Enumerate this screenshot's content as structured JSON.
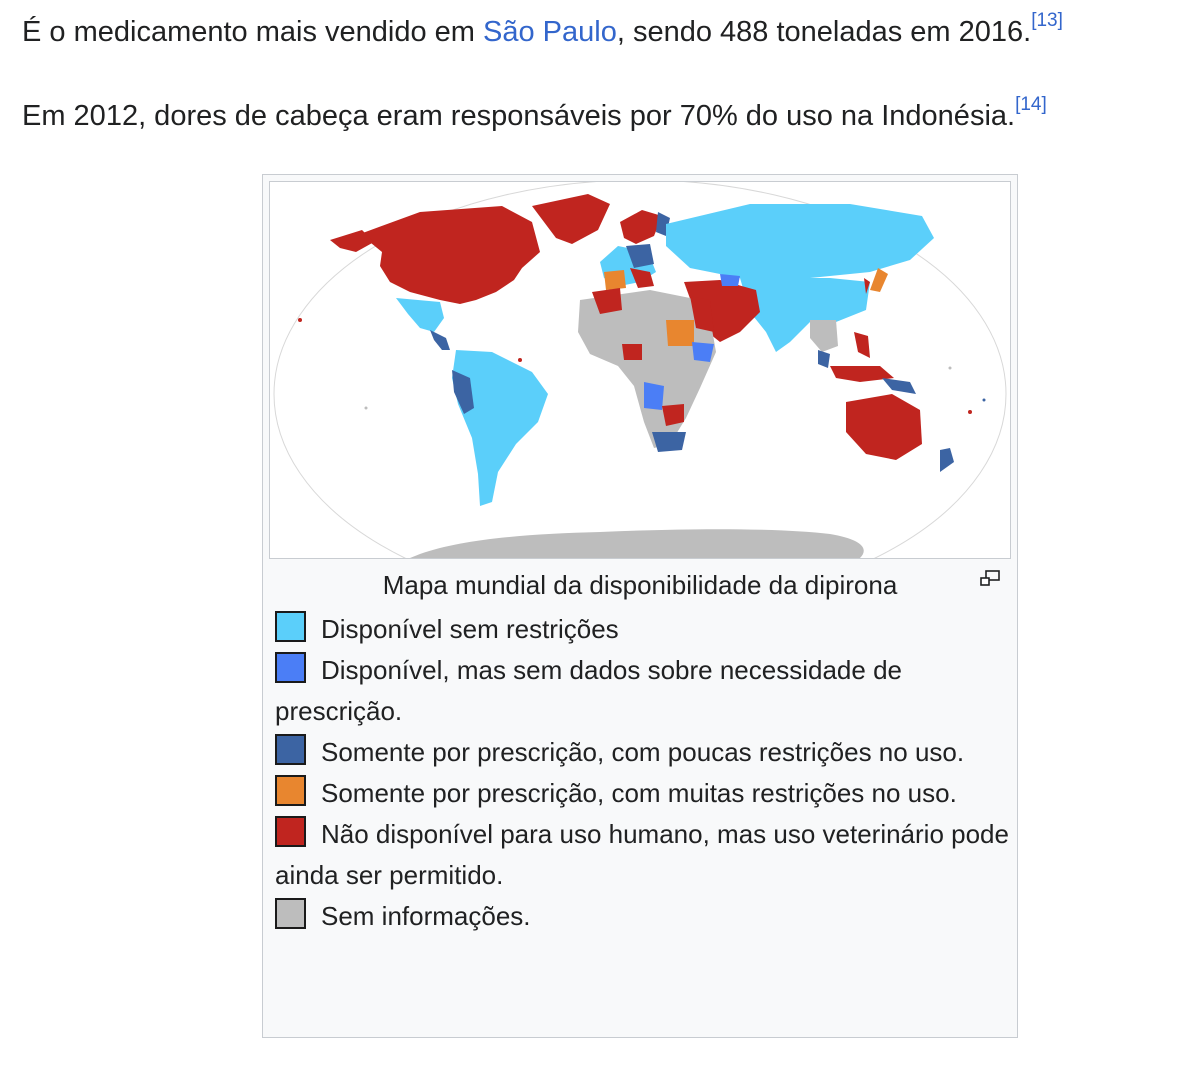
{
  "article": {
    "p1": {
      "before": "É o medicamento mais vendido em ",
      "link": "São Paulo",
      "after": ", sendo 488 toneladas em 2016.",
      "ref": "[13]"
    },
    "p2": {
      "text": "Em 2012, dores de cabeça eram responsáveis por 70% do uso na Indonésia.",
      "ref": "[14]"
    }
  },
  "figure": {
    "caption": "Mapa mundial da disponibilidade da dipirona",
    "magnify_icon": "magnify-clip-icon",
    "legend": [
      {
        "label": "Disponível sem restrições",
        "color": "#5bcffa"
      },
      {
        "label": "Disponível, mas sem dados sobre necessidade de prescrição.",
        "color": "#4b7ef6"
      },
      {
        "label": "Somente por prescrição, com poucas restrições no uso.",
        "color": "#3c64a3"
      },
      {
        "label": "Somente por prescrição, com muitas restrições no uso.",
        "color": "#e8862f"
      },
      {
        "label": "Não disponível para uso humano, mas uso veterinário pode ainda ser permitido.",
        "color": "#c0251f"
      },
      {
        "label": "Sem informações.",
        "color": "#bdbdbd"
      }
    ],
    "map_colors": {
      "unrestricted": "#5bcffa",
      "no_prescription_data": "#4b7ef6",
      "prescription_few_restrictions": "#3c64a3",
      "prescription_many_restrictions": "#e8862f",
      "banned_human_use": "#c0251f",
      "no_information": "#bdbdbd"
    }
  }
}
